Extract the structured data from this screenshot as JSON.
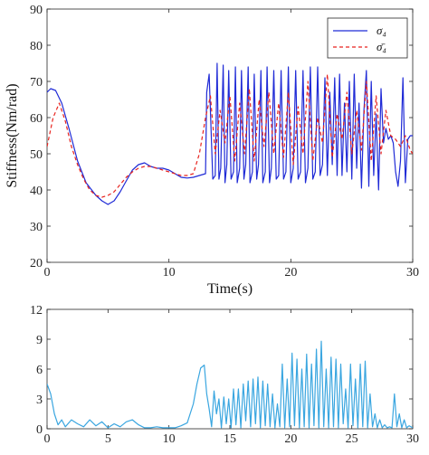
{
  "chart_data": [
    {
      "type": "line",
      "xlabel": "Time(s)",
      "ylabel": "Stiffness(Nm/rad)",
      "xlim": [
        0,
        30
      ],
      "ylim": [
        20,
        90
      ],
      "xticks": [
        0,
        10,
        20,
        30
      ],
      "yticks": [
        20,
        30,
        40,
        50,
        60,
        70,
        80,
        90
      ],
      "xtick_labels": [
        "0",
        "10",
        "20",
        "30"
      ],
      "ytick_labels": [
        "20",
        "30",
        "40",
        "50",
        "60",
        "70",
        "80",
        "90"
      ],
      "grid": false,
      "legend_position": "top-right",
      "series": [
        {
          "name": "σ₄",
          "color": "#1f2ad6",
          "style": "solid",
          "x": [
            0,
            0.3,
            0.7,
            1.2,
            1.8,
            2.5,
            3.2,
            4.0,
            4.5,
            5.0,
            5.5,
            6.0,
            6.5,
            7.0,
            7.5,
            8.0,
            8.5,
            9.0,
            9.5,
            10.0,
            10.5,
            11.0,
            11.5,
            12.0,
            12.5,
            13.0,
            13.1,
            13.3,
            13.6,
            13.8,
            13.95,
            14.1,
            14.25,
            14.45,
            14.6,
            14.75,
            14.9,
            15.1,
            15.3,
            15.45,
            15.6,
            15.8,
            15.95,
            16.15,
            16.3,
            16.5,
            16.65,
            16.85,
            17.0,
            17.2,
            17.35,
            17.55,
            17.7,
            17.9,
            18.05,
            18.25,
            18.4,
            18.6,
            18.8,
            19.0,
            19.2,
            19.4,
            19.6,
            19.8,
            20.0,
            20.2,
            20.4,
            20.6,
            20.8,
            21.0,
            21.2,
            21.4,
            21.6,
            21.8,
            22.0,
            22.2,
            22.4,
            22.6,
            22.8,
            23.0,
            23.2,
            23.4,
            23.6,
            23.8,
            24.0,
            24.2,
            24.4,
            24.6,
            24.8,
            25.0,
            25.2,
            25.4,
            25.6,
            25.8,
            26.0,
            26.2,
            26.4,
            26.6,
            26.8,
            27.0,
            27.2,
            27.4,
            27.6,
            27.8,
            28.0,
            28.2,
            28.4,
            28.6,
            28.8,
            29.0,
            29.2,
            29.4,
            29.6,
            29.8,
            30.0
          ],
          "y": [
            67,
            68,
            67.5,
            64,
            57,
            48,
            42,
            38.5,
            37,
            36,
            37,
            39.5,
            42.5,
            45.5,
            47,
            47.5,
            46.5,
            46,
            46,
            45.5,
            44.5,
            43.5,
            43.3,
            43.5,
            44,
            44.5,
            67,
            72,
            43,
            44,
            75,
            43,
            46,
            74.5,
            42,
            47,
            73,
            43,
            45,
            74,
            42,
            46,
            73,
            43,
            47,
            74,
            42,
            45,
            72,
            43,
            47,
            73,
            42,
            45,
            74,
            42,
            46,
            73,
            43,
            44,
            73,
            43,
            45,
            74,
            42,
            46,
            73,
            43,
            45,
            73,
            42,
            46,
            74,
            43,
            45,
            74,
            44,
            47,
            71,
            44,
            67,
            47,
            71,
            44,
            72,
            44,
            64,
            45,
            70,
            43,
            72,
            46,
            64,
            40.5,
            62,
            73,
            41,
            70,
            44,
            61,
            40,
            68,
            53,
            57,
            54,
            55,
            53,
            45,
            41,
            48,
            71,
            42,
            54,
            55,
            55
          ]
        },
        {
          "name": "σ̄₄",
          "color": "#e8231e",
          "style": "dashed",
          "x": [
            0,
            0.5,
            1.0,
            1.5,
            2.0,
            2.5,
            3.0,
            3.5,
            4.0,
            4.5,
            5.0,
            5.5,
            6.0,
            6.5,
            7.0,
            7.5,
            8.0,
            8.5,
            9.0,
            9.5,
            10.0,
            10.5,
            11.0,
            11.5,
            12.0,
            12.5,
            13.0,
            13.4,
            13.8,
            14.2,
            14.6,
            15.0,
            15.4,
            15.8,
            16.2,
            16.6,
            17.0,
            17.4,
            17.8,
            18.2,
            18.6,
            19.0,
            19.4,
            19.8,
            20.2,
            20.6,
            21.0,
            21.4,
            21.8,
            22.2,
            22.6,
            23.0,
            23.4,
            23.8,
            24.2,
            24.6,
            25.0,
            25.4,
            25.8,
            26.2,
            26.6,
            27.0,
            27.4,
            27.8,
            28.2,
            28.6,
            29.0,
            29.4,
            29.8,
            30.0
          ],
          "y": [
            52,
            60,
            64,
            59,
            52,
            47,
            43,
            40,
            38.5,
            38,
            38.5,
            39.5,
            41.5,
            43.5,
            45,
            46,
            46.5,
            46.5,
            46,
            45.5,
            45,
            44.5,
            44,
            44,
            44.5,
            50,
            60,
            66,
            50,
            62,
            53,
            66,
            48,
            64,
            50,
            68,
            48,
            65,
            52,
            67,
            50,
            64,
            49,
            67,
            47,
            63,
            50,
            70,
            48,
            60,
            53,
            72,
            49,
            61,
            54,
            67,
            50,
            62,
            51,
            70,
            48,
            66,
            50,
            62,
            55,
            54,
            52,
            55,
            51,
            50
          ]
        }
      ]
    },
    {
      "type": "line",
      "xlabel": "",
      "ylabel": "",
      "xlim": [
        0,
        30
      ],
      "ylim": [
        0,
        12
      ],
      "xticks": [
        0,
        5,
        10,
        15,
        20,
        25,
        30
      ],
      "yticks": [
        0,
        3,
        6,
        9,
        12
      ],
      "xtick_labels": [
        "0",
        "5",
        "10",
        "15",
        "20",
        "25",
        "30"
      ],
      "ytick_labels": [
        "0",
        "3",
        "6",
        "9",
        "12"
      ],
      "grid": false,
      "series": [
        {
          "color": "#3aa6e0",
          "style": "solid",
          "x": [
            0,
            0.3,
            0.6,
            0.9,
            1.2,
            1.5,
            2.0,
            2.5,
            3.0,
            3.5,
            4.0,
            4.5,
            5.0,
            5.5,
            6.0,
            6.5,
            7.0,
            7.5,
            8.0,
            8.5,
            9.0,
            9.5,
            10.0,
            10.5,
            11.0,
            11.5,
            12.0,
            12.3,
            12.6,
            12.9,
            13.1,
            13.3,
            13.5,
            13.7,
            13.9,
            14.1,
            14.3,
            14.5,
            14.7,
            14.9,
            15.1,
            15.3,
            15.5,
            15.7,
            15.9,
            16.1,
            16.3,
            16.5,
            16.7,
            16.9,
            17.1,
            17.3,
            17.5,
            17.7,
            17.9,
            18.1,
            18.3,
            18.5,
            18.7,
            18.9,
            19.1,
            19.3,
            19.5,
            19.7,
            19.9,
            20.1,
            20.3,
            20.5,
            20.7,
            20.9,
            21.1,
            21.3,
            21.5,
            21.7,
            21.9,
            22.1,
            22.3,
            22.5,
            22.7,
            22.9,
            23.1,
            23.3,
            23.5,
            23.7,
            23.9,
            24.1,
            24.3,
            24.5,
            24.7,
            24.9,
            25.1,
            25.3,
            25.5,
            25.7,
            25.9,
            26.1,
            26.3,
            26.5,
            26.7,
            26.9,
            27.1,
            27.3,
            27.5,
            27.7,
            27.9,
            28.1,
            28.3,
            28.5,
            28.7,
            28.9,
            29.1,
            29.3,
            29.5,
            29.7,
            30.0
          ],
          "y": [
            4.5,
            3.5,
            1.5,
            0.4,
            0.9,
            0.2,
            0.9,
            0.5,
            0.2,
            0.9,
            0.3,
            0.7,
            0.1,
            0.5,
            0.2,
            0.7,
            0.9,
            0.4,
            0.1,
            0.1,
            0.2,
            0.1,
            0.1,
            0.1,
            0.3,
            0.6,
            2.5,
            4.5,
            6.1,
            6.4,
            3.5,
            2.0,
            0.2,
            3.8,
            1.5,
            3.0,
            0.1,
            3.2,
            0.5,
            3.0,
            0.1,
            4.0,
            0.4,
            4.0,
            0.1,
            4.5,
            0.8,
            4.8,
            0.2,
            5.0,
            0.5,
            5.2,
            0.1,
            4.8,
            0.3,
            4.5,
            0.2,
            3.5,
            0.1,
            2.5,
            0.2,
            6.5,
            0.1,
            5.0,
            0.2,
            7.6,
            0.3,
            7.0,
            0.1,
            6.0,
            0.2,
            7.5,
            0.1,
            6.5,
            0.3,
            8.0,
            0.1,
            8.8,
            0.2,
            6.0,
            0.1,
            7.2,
            0.2,
            7.0,
            0.1,
            6.5,
            0.5,
            4.0,
            0.1,
            6.5,
            0.3,
            5.0,
            0.1,
            6.5,
            0.2,
            6.8,
            0.1,
            3.5,
            0.2,
            1.5,
            0.1,
            0.9,
            0.1,
            0.4,
            0.1,
            0.2,
            0.1,
            3.5,
            0.2,
            1.5,
            0.1,
            0.9,
            0.1,
            0.3,
            0.1
          ]
        }
      ]
    }
  ]
}
